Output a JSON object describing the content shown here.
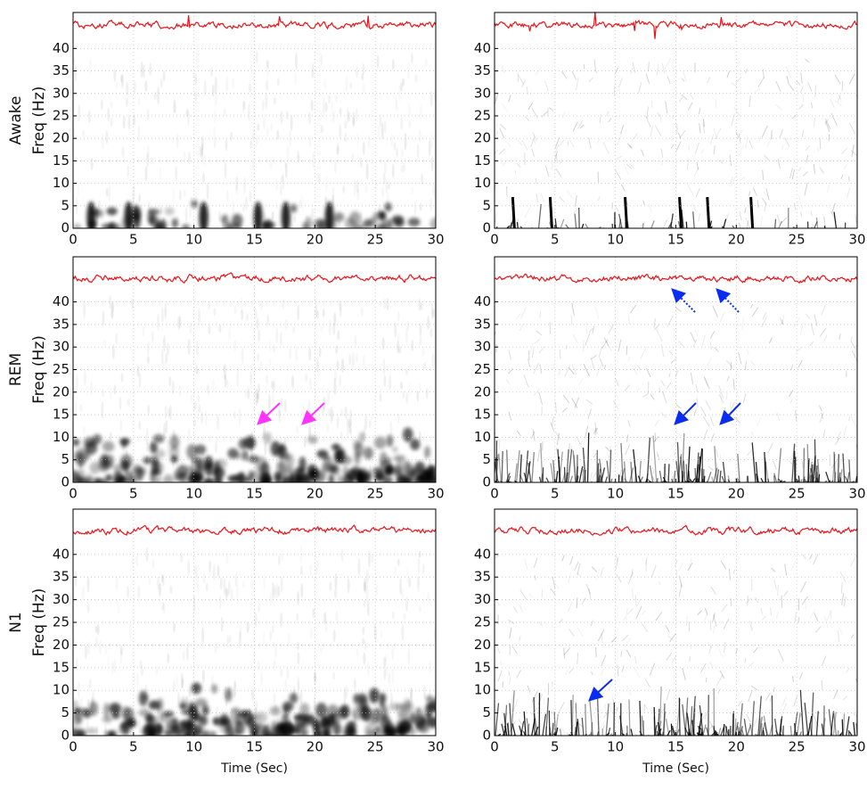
{
  "chart_data": [
    {
      "type": "spectrogram",
      "row_label": "Awake",
      "ylabel": "Freq (Hz)",
      "xlim": [
        0,
        30
      ],
      "xticks": [
        0,
        5,
        10,
        15,
        20,
        25,
        30
      ],
      "ylim": [
        0,
        48
      ],
      "yticks": [
        0,
        5,
        10,
        15,
        20,
        25,
        30,
        35,
        40
      ],
      "grid": true,
      "trace_color": "#e8141b"
    },
    {
      "type": "spectrogram",
      "xlim": [
        0,
        30
      ],
      "xticks": [
        0,
        5,
        10,
        15,
        20,
        25,
        30
      ],
      "ylim": [
        0,
        48
      ],
      "yticks": [
        0,
        5,
        10,
        15,
        20,
        25,
        30,
        35,
        40
      ],
      "grid": true,
      "trace_color": "#e8141b"
    },
    {
      "type": "spectrogram",
      "row_label": "REM",
      "ylabel": "Freq (Hz)",
      "xlim": [
        0,
        30
      ],
      "xticks": [
        0,
        5,
        10,
        15,
        20,
        25,
        30
      ],
      "ylim": [
        0,
        50
      ],
      "yticks": [
        0,
        5,
        10,
        15,
        20,
        25,
        30,
        35,
        40
      ],
      "grid": true,
      "trace_color": "#e8141b"
    },
    {
      "type": "spectrogram",
      "xlim": [
        0,
        30
      ],
      "xticks": [
        0,
        5,
        10,
        15,
        20,
        25,
        30
      ],
      "ylim": [
        0,
        50
      ],
      "yticks": [
        0,
        5,
        10,
        15,
        20,
        25,
        30,
        35,
        40
      ],
      "grid": true,
      "trace_color": "#e8141b"
    },
    {
      "type": "spectrogram",
      "row_label": "N1",
      "ylabel": "Freq (Hz)",
      "xlabel": "Time (Sec)",
      "xlim": [
        0,
        30
      ],
      "xticks": [
        0,
        5,
        10,
        15,
        20,
        25,
        30
      ],
      "ylim": [
        0,
        50
      ],
      "yticks": [
        0,
        5,
        10,
        15,
        20,
        25,
        30,
        35,
        40
      ],
      "grid": true,
      "trace_color": "#e8141b"
    },
    {
      "type": "spectrogram",
      "xlabel": "Time (Sec)",
      "xlim": [
        0,
        30
      ],
      "xticks": [
        0,
        5,
        10,
        15,
        20,
        25,
        30
      ],
      "ylim": [
        0,
        50
      ],
      "yticks": [
        0,
        5,
        10,
        15,
        20,
        25,
        30,
        35,
        40
      ],
      "grid": true,
      "trace_color": "#e8141b"
    }
  ]
}
